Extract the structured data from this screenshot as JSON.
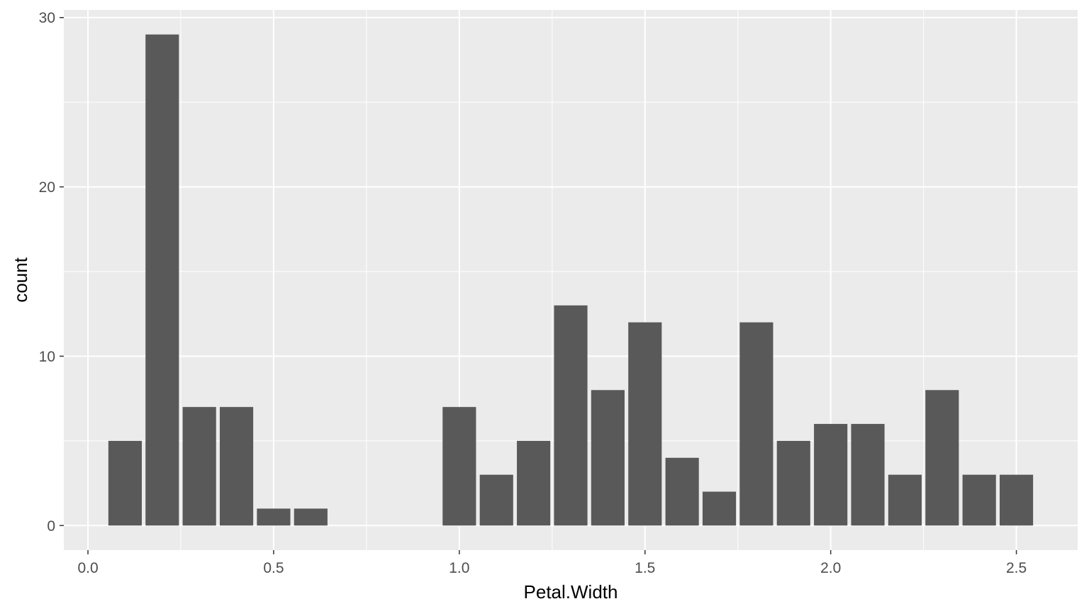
{
  "chart_data": {
    "type": "bar",
    "title": "",
    "xlabel": "Petal.Width",
    "ylabel": "count",
    "x": [
      0.1,
      0.2,
      0.3,
      0.4,
      0.5,
      0.6,
      1.0,
      1.1,
      1.2,
      1.3,
      1.4,
      1.5,
      1.6,
      1.7,
      1.8,
      1.9,
      2.0,
      2.1,
      2.2,
      2.3,
      2.4,
      2.5
    ],
    "values": [
      5,
      29,
      7,
      7,
      1,
      1,
      7,
      3,
      5,
      13,
      8,
      12,
      4,
      2,
      12,
      5,
      6,
      6,
      3,
      8,
      3,
      3
    ],
    "xlim": [
      -0.065,
      2.665
    ],
    "ylim": [
      -1.45,
      30.45
    ],
    "x_ticks": [
      0.0,
      0.5,
      1.0,
      1.5,
      2.0,
      2.5
    ],
    "x_tick_labels": [
      "0.0",
      "0.5",
      "1.0",
      "1.5",
      "2.0",
      "2.5"
    ],
    "y_ticks": [
      0,
      10,
      20,
      30
    ],
    "y_tick_labels": [
      "0",
      "10",
      "20",
      "30"
    ],
    "grid": true,
    "legend": "none",
    "colors": {
      "bar": "#595959",
      "panel": "#EBEBEB",
      "grid": "#FFFFFF",
      "text": "#4D4D4D",
      "title_text": "#000000"
    }
  }
}
